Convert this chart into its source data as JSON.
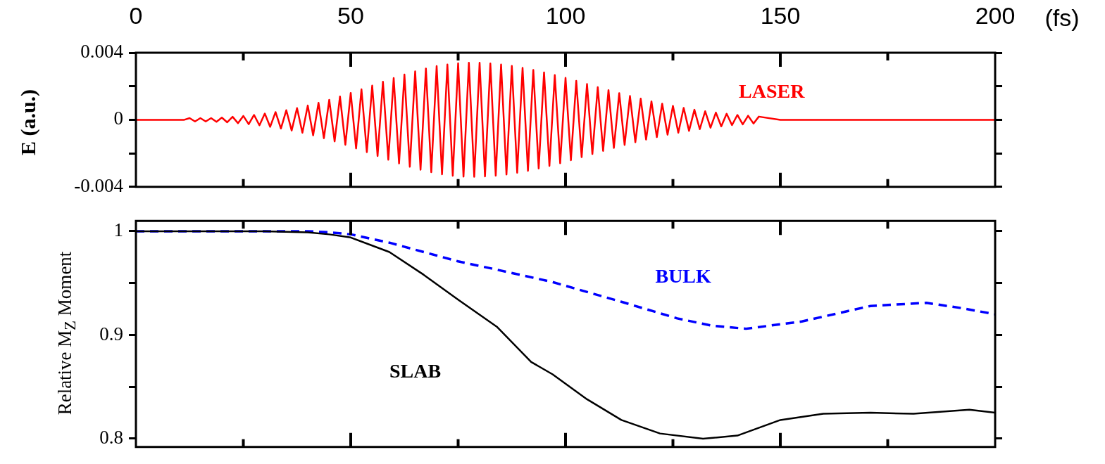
{
  "chart_data": [
    {
      "type": "line",
      "xlabel": "(fs)",
      "ylabel": "E (a.u.)",
      "xlim": [
        0,
        200
      ],
      "xticks": [
        0,
        {
          "value": 25,
          "label": null
        },
        50,
        {
          "value": 75,
          "label": null
        },
        100,
        {
          "value": 125,
          "label": null
        },
        150,
        {
          "value": 175,
          "label": null
        },
        200
      ],
      "ylim": [
        -0.004,
        0.004
      ],
      "yticks": [
        -0.004,
        {
          "value": -0.002,
          "label": null
        },
        0,
        {
          "value": 0.002,
          "label": null
        },
        0.004
      ],
      "grid": false,
      "legend": false,
      "marker": "none",
      "series": [
        {
          "name": "LASER",
          "color": "#ff0000",
          "line_style": "solid",
          "x": [
            0,
            10,
            11.25,
            12.5,
            13.75,
            15,
            16.25,
            17.5,
            18.75,
            20,
            21.25,
            22.5,
            23.75,
            25,
            26.25,
            27.5,
            28.75,
            30,
            31.25,
            32.5,
            33.75,
            35,
            36.25,
            37.5,
            38.75,
            40,
            41.25,
            42.5,
            43.75,
            45,
            46.25,
            47.5,
            48.75,
            50,
            51.25,
            52.5,
            53.75,
            55,
            56.25,
            57.5,
            58.75,
            60,
            61.25,
            62.5,
            63.75,
            65,
            66.25,
            67.5,
            68.75,
            70,
            71.25,
            72.5,
            73.75,
            75,
            76.25,
            77.5,
            78.75,
            80,
            81.25,
            82.5,
            83.75,
            85,
            86.25,
            87.5,
            88.75,
            90,
            91.25,
            92.5,
            93.75,
            95,
            96.25,
            97.5,
            98.75,
            100,
            101.25,
            102.5,
            103.75,
            105,
            106.25,
            107.5,
            108.75,
            110,
            111.25,
            112.5,
            113.75,
            115,
            116.25,
            117.5,
            118.75,
            120,
            121.25,
            122.5,
            123.75,
            125,
            126.25,
            127.5,
            128.75,
            130,
            131.25,
            132.5,
            133.75,
            135,
            136.25,
            137.5,
            138.75,
            140,
            141.25,
            142.5,
            143.75,
            145,
            150,
            200
          ],
          "values": [
            0,
            0,
            0,
            0.0001,
            -0.0001,
            0.0001,
            -0.0001,
            0.0001,
            -0.00012,
            0.00013,
            -0.00015,
            0.00018,
            -0.0002,
            0.00023,
            -0.00026,
            0.00029,
            -0.00033,
            0.00037,
            -0.00042,
            0.00046,
            -0.00052,
            0.00057,
            -0.00064,
            0.0007,
            -0.00077,
            0.00085,
            -0.00093,
            0.00101,
            -0.0011,
            0.00119,
            -0.00129,
            0.00139,
            -0.00149,
            0.0016,
            -0.00171,
            0.00182,
            -0.00193,
            0.00204,
            -0.00216,
            0.00227,
            -0.00238,
            0.00249,
            -0.0026,
            0.0027,
            -0.0028,
            0.00289,
            -0.00298,
            0.00306,
            -0.00313,
            0.0032,
            -0.00325,
            0.0033,
            -0.00334,
            0.00337,
            -0.00339,
            0.0034,
            -0.0034,
            0.0034,
            -0.00338,
            0.00336,
            -0.00333,
            0.0033,
            -0.00326,
            0.00321,
            -0.00316,
            0.0031,
            -0.00304,
            0.00297,
            -0.0029,
            0.00283,
            -0.00275,
            0.00267,
            -0.00259,
            0.0025,
            -0.00241,
            0.00232,
            -0.00223,
            0.00213,
            -0.00204,
            0.00195,
            -0.00186,
            0.00177,
            -0.00168,
            0.00159,
            -0.0015,
            0.00142,
            -0.00134,
            0.00126,
            -0.00118,
            0.0011,
            -0.00103,
            0.00096,
            -0.00089,
            0.00083,
            -0.00077,
            0.00071,
            -0.00066,
            0.0006,
            -0.00056,
            0.00051,
            -0.00047,
            0.00043,
            -0.00039,
            0.00036,
            -0.00032,
            0.00029,
            -0.00027,
            0.00024,
            -0.00022,
            0.00019,
            0,
            0
          ]
        }
      ]
    },
    {
      "type": "line",
      "ylabel": "Relative M$_{Z}$ Moment",
      "xlim": [
        0,
        200
      ],
      "xticks": [
        0,
        {
          "value": 25,
          "label": null
        },
        50,
        {
          "value": 75,
          "label": null
        },
        100,
        {
          "value": 125,
          "label": null
        },
        150,
        {
          "value": 175,
          "label": null
        },
        200
      ],
      "ylim": [
        0.792,
        1.01
      ],
      "yticks": [
        0.8,
        {
          "value": 0.85,
          "label": null
        },
        0.9,
        {
          "value": 0.95,
          "label": null
        },
        1
      ],
      "tick_labels": "y",
      "grid": false,
      "legend": false,
      "marker": "none",
      "series": [
        {
          "name": "SLAB",
          "color": "#000000",
          "line_style": "solid",
          "x": [
            0,
            30,
            40,
            45,
            50,
            59,
            67,
            75,
            84,
            92,
            97,
            105,
            113,
            122,
            132,
            140,
            150,
            160,
            171,
            181,
            194,
            200
          ],
          "values": [
            1,
            1,
            0.999,
            0.997,
            0.994,
            0.98,
            0.958,
            0.934,
            0.908,
            0.874,
            0.862,
            0.838,
            0.818,
            0.805,
            0.8,
            0.803,
            0.818,
            0.824,
            0.825,
            0.824,
            0.828,
            0.825
          ]
        },
        {
          "name": "BULK",
          "color": "#0000ff",
          "line_style": "dashed",
          "x": [
            0,
            30,
            40,
            45,
            50,
            59,
            75,
            84,
            97,
            113,
            126,
            134,
            142,
            155,
            171,
            184,
            192,
            200
          ],
          "values": [
            1,
            1,
            1,
            0.999,
            0.997,
            0.989,
            0.971,
            0.963,
            0.951,
            0.932,
            0.916,
            0.909,
            0.906,
            0.913,
            0.928,
            0.931,
            0.926,
            0.92
          ]
        }
      ]
    }
  ]
}
